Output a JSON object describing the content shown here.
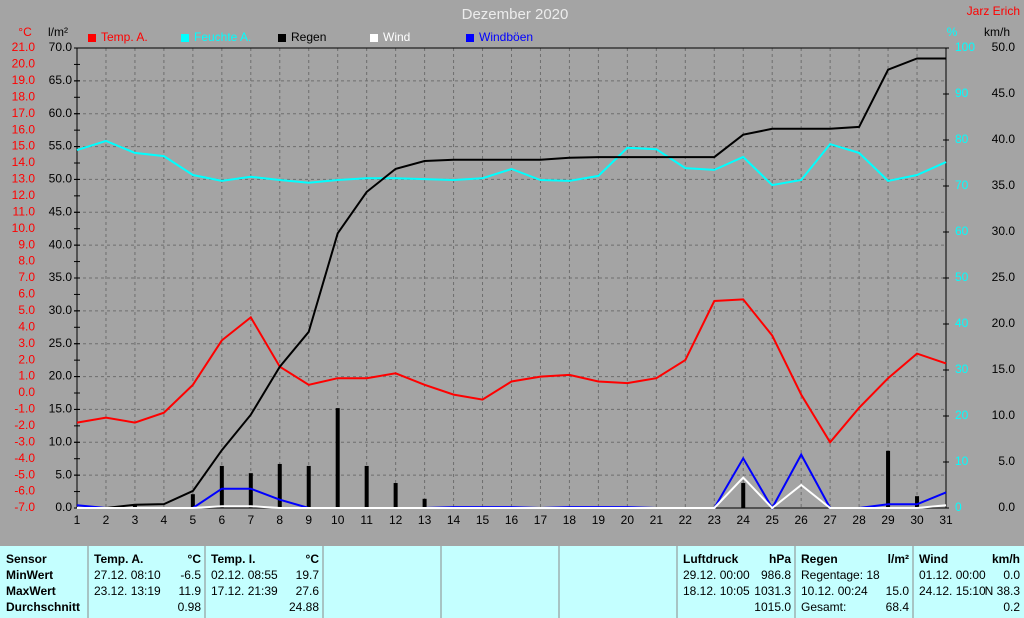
{
  "chart_data": {
    "type": "line",
    "title": "Dezember 2020",
    "author": "Jarz Erich",
    "x": [
      1,
      2,
      3,
      4,
      5,
      6,
      7,
      8,
      9,
      10,
      11,
      12,
      13,
      14,
      15,
      16,
      17,
      18,
      19,
      20,
      21,
      22,
      23,
      24,
      25,
      26,
      27,
      28,
      29,
      30,
      31
    ],
    "xlim": [
      1,
      31
    ],
    "xticks": [
      1,
      2,
      3,
      4,
      5,
      6,
      7,
      8,
      9,
      10,
      11,
      12,
      13,
      14,
      15,
      16,
      17,
      18,
      19,
      20,
      21,
      22,
      23,
      24,
      25,
      26,
      27,
      28,
      29,
      30,
      31
    ],
    "grid": true,
    "axes": [
      {
        "unit": "°C",
        "side": "left",
        "color": "#ff0000",
        "lim": [
          -7,
          21
        ],
        "ticks": [
          {
            "value": -7,
            "label": "-7.0"
          },
          {
            "value": -6,
            "label": "-6.0"
          },
          {
            "value": -5,
            "label": "-5.0"
          },
          {
            "value": -4,
            "label": "-4.0"
          },
          {
            "value": -3,
            "label": "-3.0"
          },
          {
            "value": -2,
            "label": "-2.0"
          },
          {
            "value": -1,
            "label": "-1.0"
          },
          {
            "value": 0,
            "label": "0.0"
          },
          {
            "value": 1,
            "label": "1.0"
          },
          {
            "value": 2,
            "label": "2.0"
          },
          {
            "value": 3,
            "label": "3.0"
          },
          {
            "value": 4,
            "label": "4.0"
          },
          {
            "value": 5,
            "label": "5.0"
          },
          {
            "value": 6,
            "label": "6.0"
          },
          {
            "value": 7,
            "label": "7.0"
          },
          {
            "value": 8,
            "label": "8.0"
          },
          {
            "value": 9,
            "label": "9.0"
          },
          {
            "value": 10,
            "label": "10.0"
          },
          {
            "value": 11,
            "label": "11.0"
          },
          {
            "value": 12,
            "label": "12.0"
          },
          {
            "value": 13,
            "label": "13.0"
          },
          {
            "value": 14,
            "label": "14.0"
          },
          {
            "value": 15,
            "label": "15.0"
          },
          {
            "value": 16,
            "label": "16.0"
          },
          {
            "value": 17,
            "label": "17.0"
          },
          {
            "value": 18,
            "label": "18.0"
          },
          {
            "value": 19,
            "label": "19.0"
          },
          {
            "value": 20,
            "label": "20.0"
          },
          {
            "value": 21,
            "label": "21.0"
          }
        ]
      },
      {
        "unit": "l/m²",
        "side": "left",
        "color": "#000000",
        "lim": [
          0,
          70
        ],
        "grid": true,
        "ticks": [
          {
            "value": 0,
            "label": "0.0"
          },
          {
            "value": 5,
            "label": "5.0"
          },
          {
            "value": 10,
            "label": "10.0"
          },
          {
            "value": 15,
            "label": "15.0"
          },
          {
            "value": 20,
            "label": "20.0"
          },
          {
            "value": 25,
            "label": "25.0"
          },
          {
            "value": 30,
            "label": "30.0"
          },
          {
            "value": 35,
            "label": "35.0"
          },
          {
            "value": 40,
            "label": "40.0"
          },
          {
            "value": 45,
            "label": "45.0"
          },
          {
            "value": 50,
            "label": "50.0"
          },
          {
            "value": 55,
            "label": "55.0"
          },
          {
            "value": 60,
            "label": "60.0"
          },
          {
            "value": 65,
            "label": "65.0"
          },
          {
            "value": 70,
            "label": "70.0"
          }
        ]
      },
      {
        "unit": "%",
        "side": "right",
        "color": "#00ffff",
        "lim": [
          0,
          100
        ],
        "ticks": [
          0,
          10,
          20,
          30,
          40,
          50,
          60,
          70,
          80,
          90,
          100
        ]
      },
      {
        "unit": "km/h",
        "side": "right",
        "color": "#000000",
        "lim": [
          0,
          50
        ],
        "ticks": [
          {
            "value": 0,
            "label": "0.0"
          },
          {
            "value": 5,
            "label": "5.0"
          },
          {
            "value": 10,
            "label": "10.0"
          },
          {
            "value": 15,
            "label": "15.0"
          },
          {
            "value": 20,
            "label": "20.0"
          },
          {
            "value": 25,
            "label": "25.0"
          },
          {
            "value": 30,
            "label": "30.0"
          },
          {
            "value": 35,
            "label": "35.0"
          },
          {
            "value": 40,
            "label": "40.0"
          },
          {
            "value": 45,
            "label": "45.0"
          },
          {
            "value": 50,
            "label": "50.0"
          }
        ]
      }
    ],
    "series": [
      {
        "name": "Temp. A.",
        "color": "#ff0000",
        "axis": 0,
        "values": [
          -1.8,
          -1.5,
          -1.8,
          -1.2,
          0.5,
          3.2,
          4.6,
          1.6,
          0.5,
          0.9,
          0.9,
          1.2,
          0.5,
          -0.1,
          -0.4,
          0.7,
          1.0,
          1.1,
          0.7,
          0.6,
          0.9,
          2.0,
          5.6,
          5.7,
          3.5,
          -0.1,
          -3.0,
          -0.9,
          0.9,
          2.4,
          1.8
        ]
      },
      {
        "name": "Feuchte A.",
        "color": "#00ffff",
        "axis": 2,
        "values": [
          77.8,
          79.8,
          77.2,
          76.5,
          72.4,
          71.1,
          72.0,
          71.3,
          70.7,
          71.3,
          71.7,
          71.7,
          71.5,
          71.3,
          71.7,
          73.7,
          71.3,
          71.1,
          72.2,
          78.3,
          78.0,
          73.9,
          73.5,
          76.3,
          70.2,
          71.3,
          79.1,
          77.2,
          71.1,
          72.4,
          75.2
        ]
      },
      {
        "name": "Regen",
        "color": "#000000",
        "axis": 1,
        "values": [
          0,
          0,
          0.5,
          0.6,
          2.6,
          8.8,
          14.2,
          21.5,
          26.8,
          41.8,
          48.1,
          51.6,
          52.8,
          53.0,
          53.0,
          53.0,
          53.0,
          53.3,
          53.4,
          53.4,
          53.4,
          53.4,
          53.4,
          56.8,
          57.7,
          57.7,
          57.7,
          58.0,
          66.7,
          68.4,
          68.4
        ],
        "daily": [
          0,
          0,
          0.5,
          0,
          2.1,
          6.4,
          5.3,
          6.7,
          6.4,
          15.2,
          6.4,
          3.8,
          1.4,
          0,
          0,
          0,
          0,
          0,
          0,
          0,
          0,
          0,
          0,
          3.8,
          0,
          0,
          0,
          0,
          8.7,
          1.8,
          0
        ]
      },
      {
        "name": "Wind",
        "color": "#ffffff",
        "axis": 3,
        "values": [
          0,
          0,
          0,
          0,
          0,
          0.2,
          0.2,
          0,
          0,
          0,
          0,
          0,
          0,
          0,
          0,
          0,
          0,
          0,
          0,
          0,
          0,
          0,
          0,
          3.3,
          0,
          2.5,
          0,
          0,
          0,
          0,
          0.3
        ]
      },
      {
        "name": "Windböen",
        "color": "#0000ff",
        "axis": 3,
        "values": [
          0.3,
          0,
          0,
          0,
          0,
          2.1,
          2.1,
          0.9,
          0,
          0,
          0,
          0,
          0,
          0.1,
          0.1,
          0.1,
          0,
          0.1,
          0.1,
          0.1,
          0,
          0,
          0,
          5.4,
          0,
          5.8,
          0,
          0,
          0.4,
          0.4,
          1.7
        ]
      }
    ]
  },
  "table": {
    "row_labels_header": "Sensor",
    "row_labels": [
      "MinWert",
      "MaxWert",
      "Durchschnitt"
    ],
    "columns": [
      {
        "header": "Temp. A.",
        "unit": "°C",
        "cells": [
          {
            "time": "27.12. 08:10",
            "value": "-6.5"
          },
          {
            "time": "23.12. 13:19",
            "value": "11.9"
          },
          {
            "value": "0.98"
          }
        ]
      },
      {
        "header": "Temp. I.",
        "unit": "°C",
        "cells": [
          {
            "time": "02.12. 08:55",
            "value": "19.7"
          },
          {
            "time": "17.12. 21:39",
            "value": "27.6"
          },
          {
            "value": "24.88"
          }
        ]
      },
      {
        "header": "Luftdruck",
        "unit": "hPa",
        "cells": [
          {
            "time": "29.12. 00:00",
            "value": "986.8"
          },
          {
            "time": "18.12. 10:05",
            "value": "1031.3"
          },
          {
            "value": "1015.0"
          }
        ]
      },
      {
        "header": "Regen",
        "unit": "l/m²",
        "cells": [
          {
            "time": "Regentage: 18"
          },
          {
            "time": "10.12. 00:24",
            "value": "15.0"
          },
          {
            "time": "Gesamt:",
            "value": "68.4"
          }
        ]
      },
      {
        "header": "Wind",
        "unit": "km/h",
        "cells": [
          {
            "time": "01.12. 00:00",
            "value": "0.0"
          },
          {
            "time": "24.12. 15:10",
            "value": "N 38.3"
          },
          {
            "value": "0.2"
          }
        ]
      }
    ]
  }
}
